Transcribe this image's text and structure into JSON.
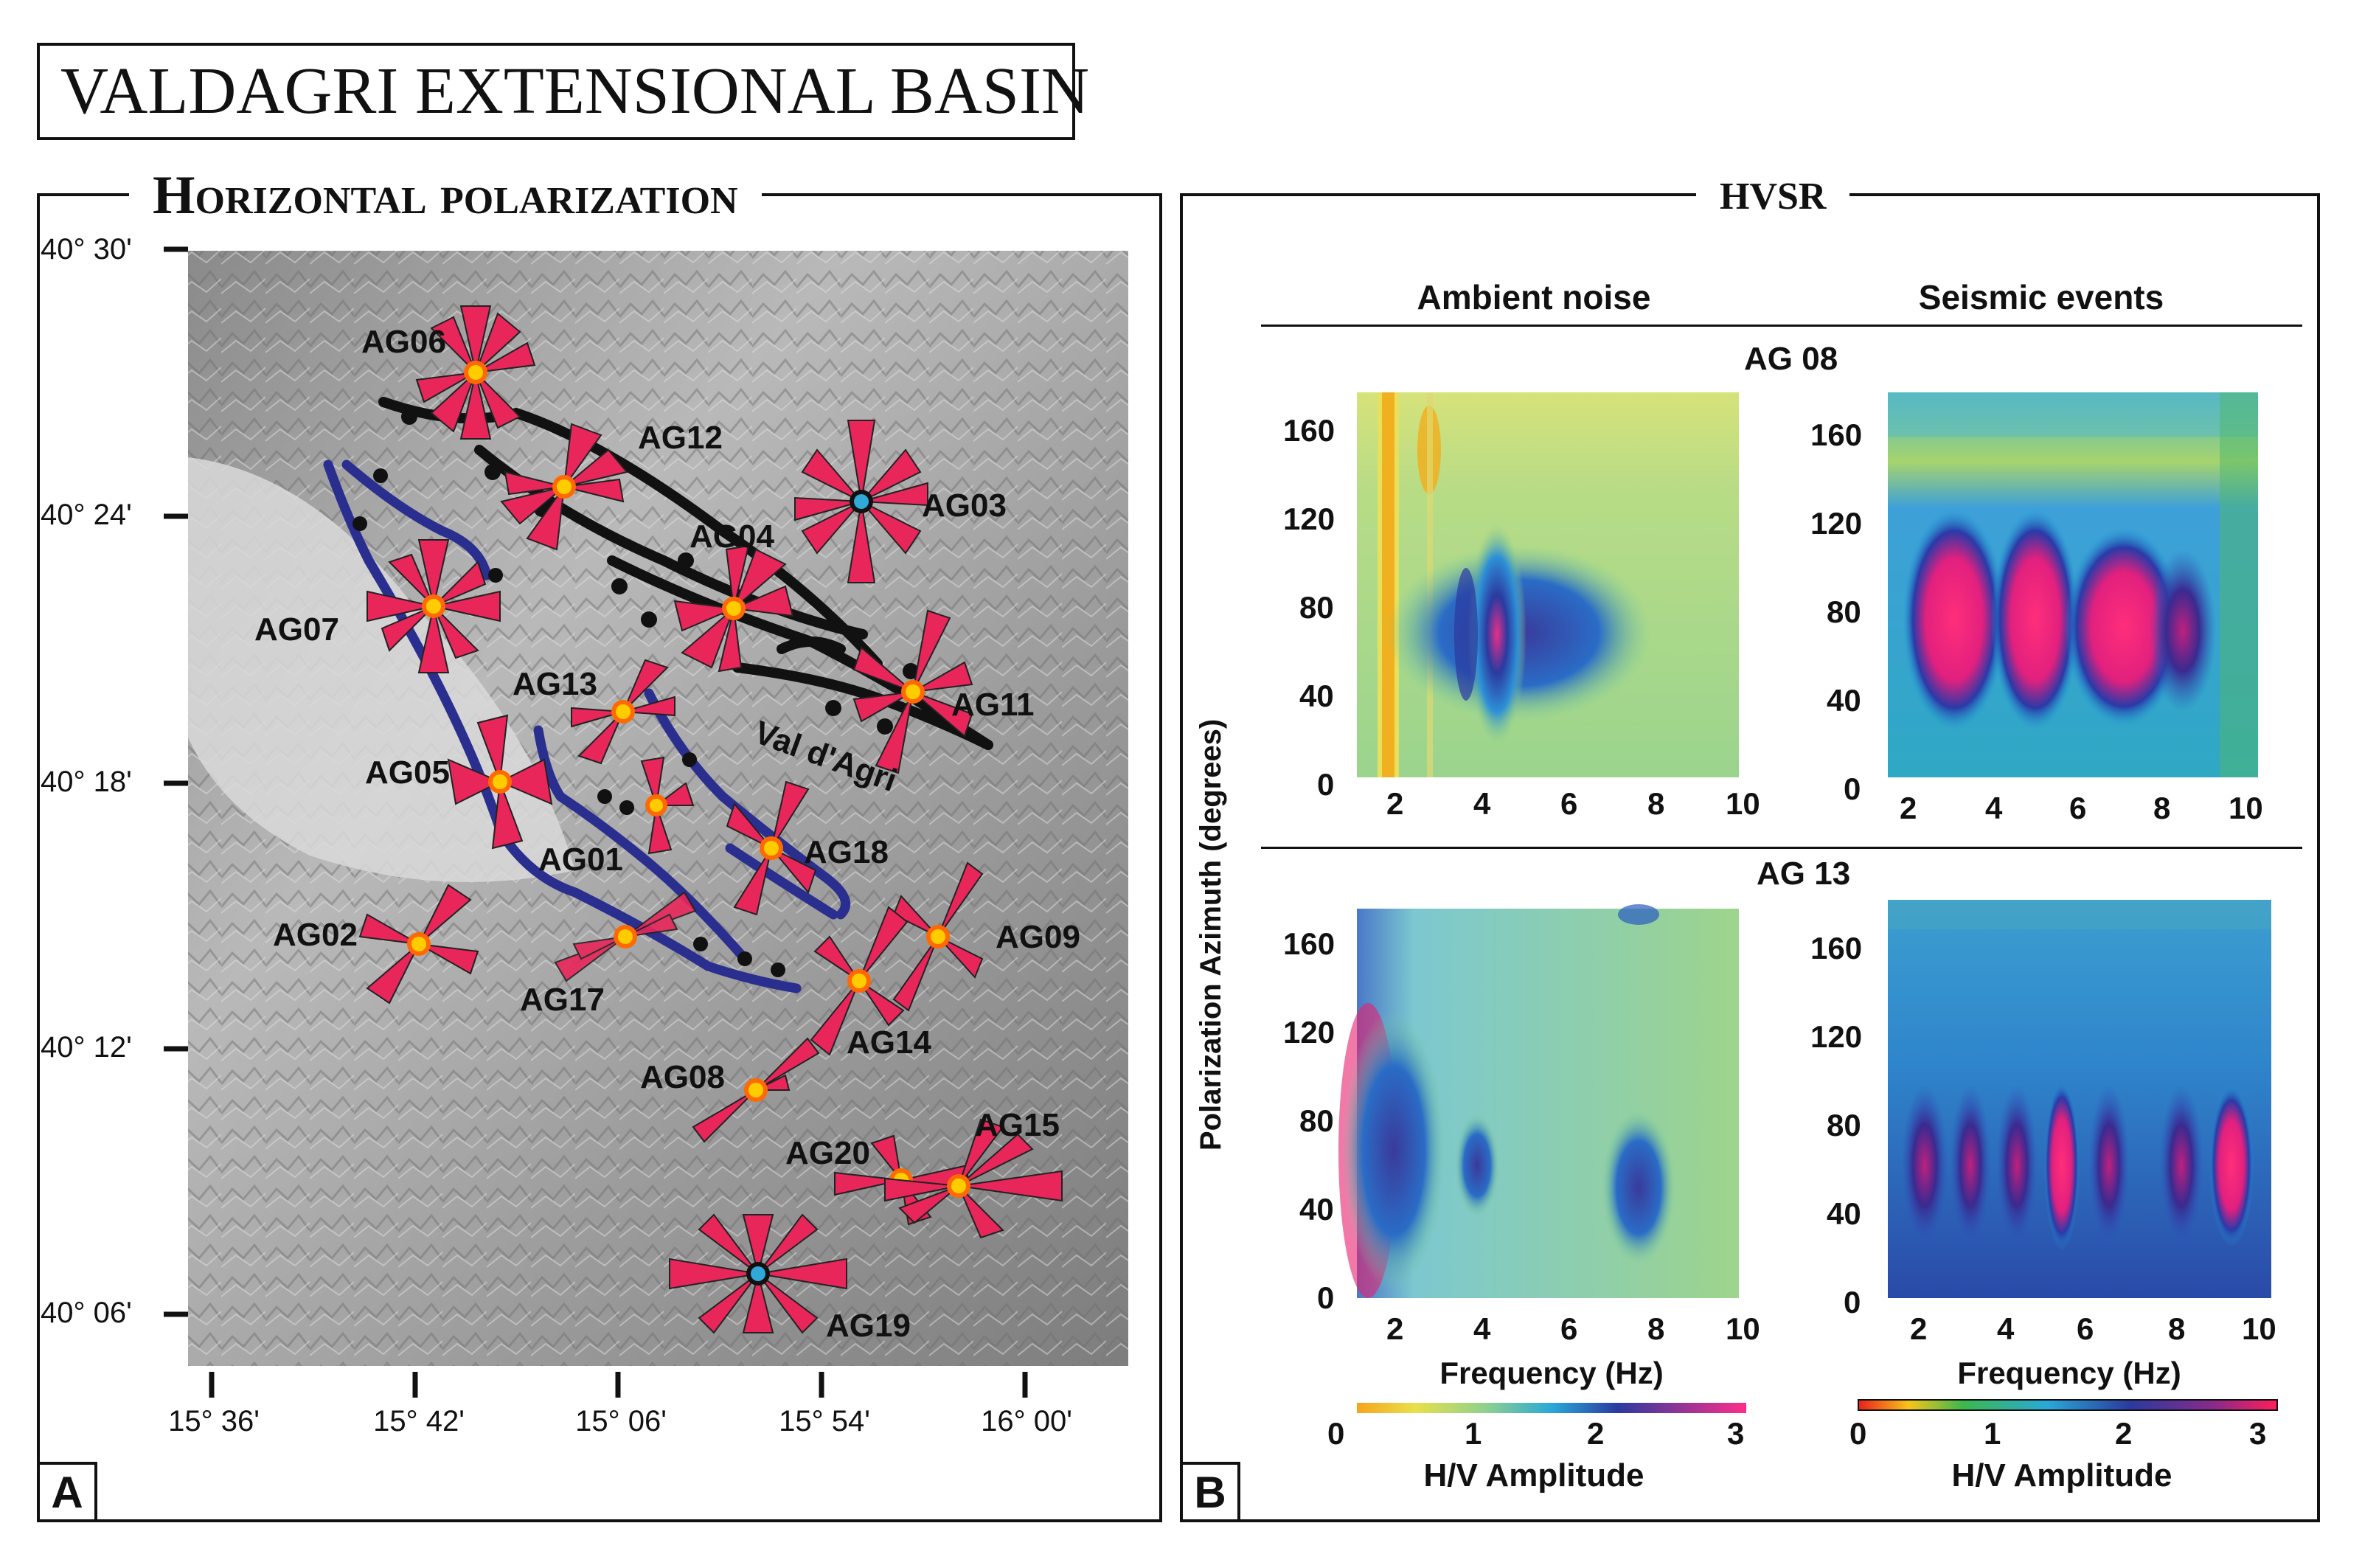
{
  "title": "VALDAGRI EXTENSIONAL BASIN",
  "panel_a": {
    "heading": "Horizontal polarization",
    "letter": "A",
    "lat_labels": [
      "40° 30'",
      "40° 24'",
      "40° 18'",
      "40° 12'",
      "40° 06'"
    ],
    "lon_labels": [
      "15° 36'",
      "15° 42'",
      "15° 06'",
      "15° 54'",
      "16° 00'"
    ],
    "stations": [
      {
        "name": "AG06"
      },
      {
        "name": "AG12"
      },
      {
        "name": "AG03"
      },
      {
        "name": "AG04"
      },
      {
        "name": "AG07"
      },
      {
        "name": "AG13"
      },
      {
        "name": "AG11"
      },
      {
        "name": "AG05"
      },
      {
        "name": "AG01"
      },
      {
        "name": "AG18"
      },
      {
        "name": "AG02"
      },
      {
        "name": "AG17"
      },
      {
        "name": "AG09"
      },
      {
        "name": "AG14"
      },
      {
        "name": "AG08"
      },
      {
        "name": "AG20"
      },
      {
        "name": "AG15"
      },
      {
        "name": "AG19"
      }
    ],
    "valley_label": "Val d'Agri",
    "colors": {
      "rose": "#e8265a",
      "fault_black": "#111111",
      "fault_blue": "#2a2f8f",
      "station_core": "#ffcc00",
      "station_ring": "#ff6a00",
      "station_cyan": "#30a8d8"
    }
  },
  "panel_b": {
    "heading": "HVSR",
    "letter": "B",
    "col_ambient": "Ambient noise",
    "col_seismic": "Seismic events",
    "row_ag08": "AG 08",
    "row_ag13": "AG 13",
    "y_axis_title": "Polarization Azimuth (degrees)",
    "y_ticks": [
      "160",
      "120",
      "80",
      "40",
      "0"
    ],
    "x_ticks_ambient_top": [
      "2",
      "4",
      "6",
      "8",
      "10"
    ],
    "x_ticks_seismic_top": [
      "2",
      "4",
      "6",
      "8",
      "10"
    ],
    "x_ticks_ambient_bottom": [
      "2",
      "4",
      "6",
      "8",
      "10"
    ],
    "x_ticks_seismic_bottom": [
      "2",
      "4",
      "6",
      "8",
      "10"
    ],
    "x_label_ambient": "Frequency (Hz)",
    "x_label_seismic": "Frequency (Hz)",
    "colorbar_ambient": {
      "ticks": [
        "0",
        "1",
        "2",
        "3"
      ],
      "label": "H/V Amplitude"
    },
    "colorbar_seismic": {
      "ticks": [
        "0",
        "1",
        "2",
        "3"
      ],
      "label": "H/V Amplitude"
    }
  }
}
